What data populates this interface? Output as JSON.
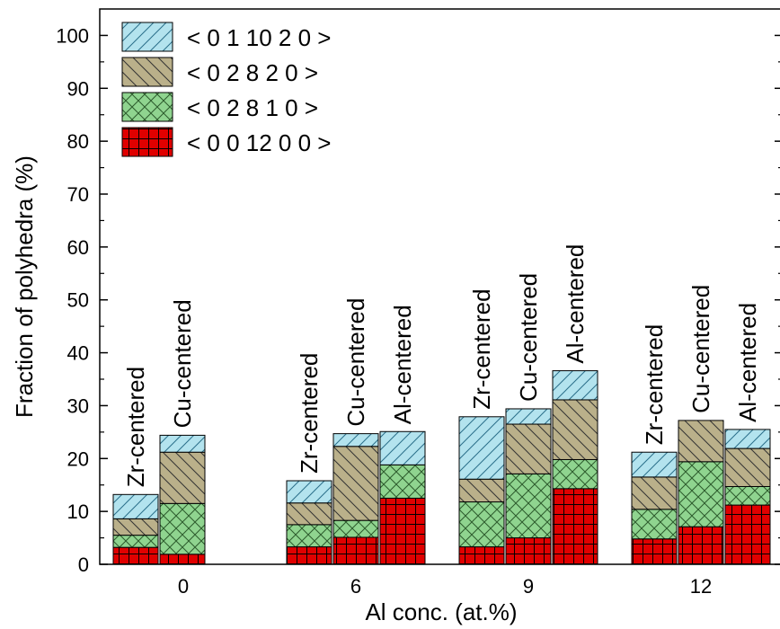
{
  "chart_data": {
    "type": "bar",
    "stacked": true,
    "xlabel": "Al conc. (at.%)",
    "ylabel": "Fraction of polyhedra (%)",
    "ylim": [
      0,
      105
    ],
    "yticks": [
      0,
      10,
      20,
      30,
      40,
      50,
      60,
      70,
      80,
      90,
      100
    ],
    "categories": [
      "0",
      "6",
      "9",
      "12"
    ],
    "legend_position": "top-left",
    "series": [
      {
        "name": "< 0 0 12 0 0 >",
        "color": "#e00000",
        "pattern": "grid"
      },
      {
        "name": "< 0 2 8 1 0 >",
        "color": "#8fd48f",
        "pattern": "crosshatch"
      },
      {
        "name": "< 0 2 8 2 0 >",
        "color": "#bab08a",
        "pattern": "backslash"
      },
      {
        "name": "< 0 1 10 2 0 >",
        "color": "#b3e3ee",
        "pattern": "slash"
      }
    ],
    "legend_order": [
      3,
      2,
      1,
      0
    ],
    "bars": [
      {
        "category": "0",
        "label": "Zr-centered",
        "values": [
          3.2,
          2.3,
          3.1,
          4.6
        ]
      },
      {
        "category": "0",
        "label": "Cu-centered",
        "values": [
          1.9,
          9.6,
          9.7,
          3.2
        ]
      },
      {
        "category": "6",
        "label": "Zr-centered",
        "values": [
          3.3,
          4.2,
          4.1,
          4.2
        ]
      },
      {
        "category": "6",
        "label": "Cu-centered",
        "values": [
          5.1,
          3.2,
          14.0,
          2.4
        ]
      },
      {
        "category": "6",
        "label": "Al-centered",
        "values": [
          12.5,
          6.3,
          0.0,
          6.3
        ]
      },
      {
        "category": "9",
        "label": "Zr-centered",
        "values": [
          3.3,
          8.5,
          4.3,
          11.8
        ]
      },
      {
        "category": "9",
        "label": "Cu-centered",
        "values": [
          5.0,
          12.1,
          9.4,
          2.9
        ]
      },
      {
        "category": "9",
        "label": "Al-centered",
        "values": [
          14.3,
          5.5,
          11.3,
          5.5
        ]
      },
      {
        "category": "12",
        "label": "Zr-centered",
        "values": [
          4.8,
          5.6,
          6.1,
          4.7
        ]
      },
      {
        "category": "12",
        "label": "Cu-centered",
        "values": [
          7.1,
          12.3,
          7.8,
          0.0
        ]
      },
      {
        "category": "12",
        "label": "Al-centered",
        "values": [
          11.2,
          3.5,
          7.2,
          3.6
        ]
      }
    ]
  }
}
